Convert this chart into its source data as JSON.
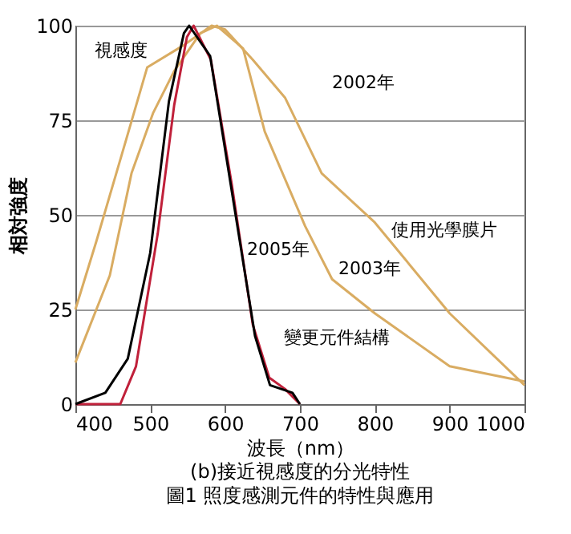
{
  "chart_data": {
    "type": "line",
    "title": "(b)接近視感度的分光特性",
    "subtitle": "圖1 照度感測元件的特性與應用",
    "xlabel": "波長（nm）",
    "ylabel": "相対強度",
    "xlim": [
      400,
      1000
    ],
    "xticks": [
      400,
      500,
      600,
      700,
      800,
      900,
      {
        "value": 1000,
        "label": "1000"
      }
    ],
    "ylim": [
      0,
      100
    ],
    "yticks": [
      0,
      25,
      50,
      75,
      100
    ],
    "grid": "y",
    "legend": false,
    "line_style": "solid",
    "marker": "none",
    "series": [
      {
        "color": "#d9ac62",
        "x": [
          400,
          428,
          468,
          496,
          546,
          582,
          600,
          637,
          680,
          729,
          800,
          900,
          1000
        ],
        "values": [
          25,
          43,
          70,
          89,
          95,
          100,
          99,
          91,
          81,
          61,
          48,
          24,
          5
        ]
      },
      {
        "color": "#d9ac62",
        "x": [
          400,
          446,
          475,
          504,
          532,
          567,
          589,
          624,
          653,
          707,
          743,
          800,
          900,
          1000
        ],
        "values": [
          11,
          34,
          61,
          77,
          88,
          98,
          100,
          94,
          72,
          47,
          33,
          24,
          10,
          6
        ]
      },
      {
        "color": "#c0203a",
        "x": [
          400,
          460,
          481,
          510,
          532,
          549,
          558,
          581,
          609,
          637,
          659,
          680,
          700
        ],
        "values": [
          0,
          0,
          10,
          45,
          79,
          97,
          100,
          91,
          58,
          21,
          7,
          4,
          0
        ]
      },
      {
        "color": "#000000",
        "x": [
          400,
          440,
          470,
          500,
          525,
          545,
          552,
          580,
          610,
          640,
          660,
          690,
          700
        ],
        "values": [
          0,
          3,
          12,
          40,
          80,
          98,
          100,
          92,
          55,
          18,
          5,
          3,
          0
        ]
      }
    ],
    "annotations": [
      "視感度",
      "2002年",
      "2003年",
      "2005年",
      "使用光學膜片",
      "變更元件結構"
    ]
  }
}
